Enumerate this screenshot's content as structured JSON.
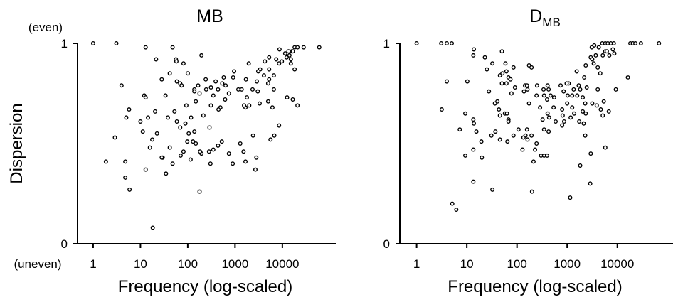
{
  "y_axis_label": "Dispersion",
  "y_top_note": "(even)",
  "y_bottom_note": "(uneven)",
  "chart_data": [
    {
      "type": "scatter",
      "title": "MB",
      "title_sub": "",
      "xlabel": "Frequency (log-scaled)",
      "ylabel": "Dispersion",
      "x_scale": "log10",
      "x_ticks": [
        {
          "v": 0,
          "label": "1"
        },
        {
          "v": 1,
          "label": "10"
        },
        {
          "v": 2,
          "label": "100"
        },
        {
          "v": 3,
          "label": "1000"
        },
        {
          "v": 4,
          "label": "10000"
        }
      ],
      "y_ticks": [
        {
          "v": 0,
          "label": "0"
        },
        {
          "v": 1,
          "label": "1"
        }
      ],
      "xlim_log10": [
        -0.42,
        5.13
      ],
      "ylim": [
        0,
        1
      ],
      "point_format": "[log10(frequency), dispersion]",
      "points": [
        [
          0,
          1.0
        ],
        [
          0.49,
          1.0
        ],
        [
          1.11,
          0.98
        ],
        [
          1.68,
          0.98
        ],
        [
          1.33,
          0.92
        ],
        [
          1.75,
          0.92
        ],
        [
          1.76,
          0.91
        ],
        [
          1.91,
          0.9
        ],
        [
          2.29,
          0.94
        ],
        [
          1.62,
          0.85
        ],
        [
          2.0,
          0.85
        ],
        [
          1.45,
          0.82
        ],
        [
          1.77,
          0.81
        ],
        [
          1.84,
          0.8
        ],
        [
          1.87,
          0.79
        ],
        [
          2.22,
          0.79
        ],
        [
          2.14,
          0.77
        ],
        [
          2.14,
          0.76
        ],
        [
          2.25,
          0.75
        ],
        [
          2.49,
          0.78
        ],
        [
          2.38,
          0.82
        ],
        [
          2.39,
          0.77
        ],
        [
          2.17,
          0.71
        ],
        [
          1.08,
          0.74
        ],
        [
          0.6,
          0.79
        ],
        [
          1.11,
          0.73
        ],
        [
          1.53,
          0.74
        ],
        [
          1.72,
          0.66
        ],
        [
          1.31,
          0.66
        ],
        [
          1.58,
          0.63
        ],
        [
          1.16,
          0.63
        ],
        [
          0.7,
          0.63
        ],
        [
          1.0,
          0.61
        ],
        [
          1.77,
          0.61
        ],
        [
          1.95,
          0.6
        ],
        [
          1.84,
          0.58
        ],
        [
          2.07,
          0.63
        ],
        [
          2.33,
          0.64
        ],
        [
          1.97,
          0.69
        ],
        [
          1.05,
          0.56
        ],
        [
          1.35,
          0.55
        ],
        [
          2.02,
          0.55
        ],
        [
          2.46,
          0.58
        ],
        [
          1.25,
          0.52
        ],
        [
          1.62,
          0.48
        ],
        [
          2.45,
          0.46
        ],
        [
          1.2,
          0.48
        ],
        [
          1.47,
          0.43
        ],
        [
          1.91,
          0.46
        ],
        [
          2.64,
          0.49
        ],
        [
          2.11,
          0.51
        ],
        [
          2.72,
          0.51
        ],
        [
          2.14,
          0.56
        ],
        [
          1.99,
          0.51
        ],
        [
          0.46,
          0.53
        ],
        [
          0.76,
          0.67
        ],
        [
          0.27,
          0.41
        ],
        [
          0.68,
          0.41
        ],
        [
          1.11,
          0.37
        ],
        [
          0.68,
          0.33
        ],
        [
          0.77,
          0.27
        ],
        [
          1.26,
          0.08
        ],
        [
          1.68,
          0.4
        ],
        [
          1.54,
          0.35
        ],
        [
          1.45,
          0.43
        ],
        [
          1.85,
          0.44
        ],
        [
          2.06,
          0.42
        ],
        [
          2.29,
          0.45
        ],
        [
          2.26,
          0.46
        ],
        [
          2.17,
          0.5
        ],
        [
          2.54,
          0.47
        ],
        [
          2.48,
          0.4
        ],
        [
          2.25,
          0.26
        ],
        [
          2.87,
          0.45
        ],
        [
          3.45,
          0.43
        ],
        [
          3.22,
          0.41
        ],
        [
          3.18,
          0.46
        ],
        [
          3.11,
          0.5
        ],
        [
          3.43,
          0.37
        ],
        [
          2.95,
          0.4
        ],
        [
          2.49,
          0.69
        ],
        [
          2.69,
          0.68
        ],
        [
          2.79,
          0.72
        ],
        [
          2.76,
          0.83
        ],
        [
          2.73,
          0.8
        ],
        [
          2.87,
          0.75
        ],
        [
          3.14,
          0.77
        ],
        [
          3.23,
          0.82
        ],
        [
          3.29,
          0.9
        ],
        [
          3.53,
          0.87
        ],
        [
          3.46,
          0.81
        ],
        [
          3.37,
          0.77
        ],
        [
          3.25,
          0.73
        ],
        [
          2.8,
          0.79
        ],
        [
          2.59,
          0.81
        ],
        [
          2.64,
          0.77
        ],
        [
          2.54,
          0.74
        ],
        [
          2.65,
          0.67
        ],
        [
          2.98,
          0.86
        ],
        [
          3.22,
          0.68
        ],
        [
          3.48,
          0.76
        ],
        [
          3.49,
          0.86
        ],
        [
          3.63,
          0.91
        ],
        [
          3.61,
          0.84
        ],
        [
          3.72,
          0.87
        ],
        [
          3.7,
          0.8
        ],
        [
          3.52,
          0.7
        ],
        [
          3.7,
          0.71
        ],
        [
          3.79,
          0.68
        ],
        [
          3.72,
          0.82
        ],
        [
          3.82,
          0.84
        ],
        [
          3.93,
          0.9
        ],
        [
          3.72,
          0.93
        ],
        [
          3.87,
          0.92
        ],
        [
          3.99,
          0.91
        ],
        [
          4.06,
          0.95
        ],
        [
          4.13,
          0.96
        ],
        [
          4.09,
          0.93
        ],
        [
          4.2,
          0.96
        ],
        [
          3.94,
          0.97
        ],
        [
          4.15,
          0.94
        ],
        [
          4.18,
          0.92
        ],
        [
          4.22,
          0.96
        ],
        [
          4.26,
          0.87
        ],
        [
          4.32,
          0.69
        ],
        [
          4.26,
          0.98
        ],
        [
          4.32,
          0.98
        ],
        [
          4.45,
          0.98
        ],
        [
          4.78,
          0.98
        ],
        [
          4.1,
          0.73
        ],
        [
          4.22,
          0.72
        ],
        [
          3.75,
          0.52
        ],
        [
          3.38,
          0.54
        ],
        [
          3.3,
          0.69
        ],
        [
          4.18,
          0.9
        ],
        [
          3.82,
          0.77
        ],
        [
          3.93,
          0.59
        ],
        [
          3.19,
          0.69
        ],
        [
          3.83,
          0.54
        ],
        [
          2.96,
          0.83
        ],
        [
          3.07,
          0.77
        ]
      ]
    },
    {
      "type": "scatter",
      "title": "D",
      "title_sub": "MB",
      "xlabel": "Frequency (log-scaled)",
      "ylabel": "Dispersion",
      "x_scale": "log10",
      "x_ticks": [
        {
          "v": 0,
          "label": "1"
        },
        {
          "v": 1,
          "label": "10"
        },
        {
          "v": 2,
          "label": "100"
        },
        {
          "v": 3,
          "label": "1000"
        },
        {
          "v": 4,
          "label": "10000"
        }
      ],
      "y_ticks": [
        {
          "v": 0,
          "label": "0"
        },
        {
          "v": 1,
          "label": "1"
        }
      ],
      "xlim_log10": [
        -0.42,
        5.11
      ],
      "ylim": [
        0,
        1
      ],
      "point_format": "[log10(frequency), dispersion]",
      "points": [
        [
          0,
          1
        ],
        [
          0.49,
          1
        ],
        [
          0.6,
          1
        ],
        [
          0.7,
          1
        ],
        [
          1.14,
          0.97
        ],
        [
          1.36,
          0.93
        ],
        [
          1.13,
          0.94
        ],
        [
          1.7,
          0.96
        ],
        [
          1.51,
          0.9
        ],
        [
          1.4,
          0.87
        ],
        [
          1.77,
          0.9
        ],
        [
          1.93,
          0.88
        ],
        [
          1.66,
          0.84
        ],
        [
          1.71,
          0.85
        ],
        [
          1.79,
          0.86
        ],
        [
          1.83,
          0.83
        ],
        [
          1.87,
          0.82
        ],
        [
          2.24,
          0.89
        ],
        [
          2.29,
          0.88
        ],
        [
          1.01,
          0.81
        ],
        [
          0.6,
          0.81
        ],
        [
          2.16,
          0.79
        ],
        [
          1.7,
          0.8
        ],
        [
          1.79,
          0.8
        ],
        [
          1.44,
          0.76
        ],
        [
          1.89,
          0.75
        ],
        [
          1.96,
          0.78
        ],
        [
          2.2,
          0.79
        ],
        [
          2.21,
          0.77
        ],
        [
          2.4,
          0.79
        ],
        [
          2.39,
          0.74
        ],
        [
          2.14,
          0.76
        ],
        [
          2.53,
          0.77
        ],
        [
          2.54,
          0.74
        ],
        [
          2.61,
          0.79
        ],
        [
          2.63,
          0.77
        ],
        [
          2.6,
          0.72
        ],
        [
          2.61,
          0.65
        ],
        [
          2.94,
          0.61
        ],
        [
          2.91,
          0.64
        ],
        [
          0.5,
          0.67
        ],
        [
          1.56,
          0.7
        ],
        [
          1.61,
          0.71
        ],
        [
          1.64,
          0.67
        ],
        [
          1.76,
          0.65
        ],
        [
          1.66,
          0.64
        ],
        [
          1.8,
          0.65
        ],
        [
          0.97,
          0.65
        ],
        [
          1.13,
          0.62
        ],
        [
          1.14,
          0.6
        ],
        [
          1.83,
          0.62
        ],
        [
          1.83,
          0.61
        ],
        [
          0.86,
          0.57
        ],
        [
          1.19,
          0.56
        ],
        [
          1.49,
          0.54
        ],
        [
          1.57,
          0.56
        ],
        [
          2.03,
          0.57
        ],
        [
          1.66,
          0.52
        ],
        [
          1.93,
          0.54
        ],
        [
          2.17,
          0.54
        ],
        [
          2.13,
          0.53
        ],
        [
          1.29,
          0.51
        ],
        [
          1.81,
          0.51
        ],
        [
          2.29,
          0.54
        ],
        [
          2.21,
          0.52
        ],
        [
          2.39,
          0.5
        ],
        [
          2.11,
          0.47
        ],
        [
          2.36,
          0.47
        ],
        [
          2.2,
          0.57
        ],
        [
          2.54,
          0.57
        ],
        [
          2.63,
          0.56
        ],
        [
          3.34,
          0.83
        ],
        [
          4.21,
          0.83
        ],
        [
          3.97,
          0.77
        ],
        [
          3.61,
          0.77
        ],
        [
          3.13,
          0.77
        ],
        [
          3.31,
          0.73
        ],
        [
          3.73,
          0.71
        ],
        [
          3.71,
          0.64
        ],
        [
          3.83,
          0.66
        ],
        [
          3.67,
          0.67
        ],
        [
          3.19,
          0.86
        ],
        [
          3.53,
          0.9
        ],
        [
          3.57,
          0.94
        ],
        [
          3.47,
          0.93
        ],
        [
          3.37,
          0.89
        ],
        [
          3.66,
          0.85
        ],
        [
          3.61,
          0.88
        ],
        [
          3.5,
          0.92
        ],
        [
          3.71,
          0.94
        ],
        [
          3.84,
          0.94
        ],
        [
          3.76,
          0.96
        ],
        [
          3.91,
          0.97
        ],
        [
          3.7,
          1
        ],
        [
          3.76,
          1
        ],
        [
          3.81,
          1
        ],
        [
          3.87,
          1
        ],
        [
          3.93,
          1
        ],
        [
          4.26,
          1
        ],
        [
          4.31,
          1
        ],
        [
          4.36,
          1
        ],
        [
          4.47,
          1
        ],
        [
          4.83,
          1
        ],
        [
          3.54,
          0.99
        ],
        [
          3.49,
          0.98
        ],
        [
          3.63,
          0.98
        ],
        [
          3.79,
          0.96
        ],
        [
          3.94,
          0.95
        ],
        [
          3.36,
          0.7
        ],
        [
          3.37,
          0.65
        ],
        [
          3.07,
          0.63
        ],
        [
          3.0,
          0.7
        ],
        [
          3.1,
          0.68
        ],
        [
          2.9,
          0.67
        ],
        [
          3.14,
          0.65
        ],
        [
          3.24,
          0.61
        ],
        [
          2.9,
          0.59
        ],
        [
          3.31,
          0.66
        ],
        [
          2.77,
          0.61
        ],
        [
          3.33,
          0.6
        ],
        [
          3.1,
          0.74
        ],
        [
          3.36,
          0.54
        ],
        [
          3.5,
          0.7
        ],
        [
          3.59,
          0.69
        ],
        [
          3.26,
          0.77
        ],
        [
          3.03,
          0.8
        ],
        [
          3.23,
          0.79
        ],
        [
          3.39,
          0.78
        ],
        [
          2.87,
          0.79
        ],
        [
          2.99,
          0.8
        ],
        [
          2.93,
          0.76
        ],
        [
          3.01,
          0.74
        ],
        [
          3.2,
          0.74
        ],
        [
          2.67,
          0.74
        ],
        [
          2.74,
          0.73
        ],
        [
          2.73,
          0.68
        ],
        [
          2.46,
          0.68
        ],
        [
          2.24,
          0.7
        ],
        [
          2.64,
          0.63
        ],
        [
          2.51,
          0.62
        ],
        [
          0.97,
          0.44
        ],
        [
          1.13,
          0.47
        ],
        [
          1.3,
          0.43
        ],
        [
          1.13,
          0.31
        ],
        [
          2.33,
          0.41
        ],
        [
          2.3,
          0.26
        ],
        [
          1.51,
          0.27
        ],
        [
          2.48,
          0.44
        ],
        [
          2.54,
          0.44
        ],
        [
          2.6,
          0.44
        ],
        [
          3.06,
          0.23
        ],
        [
          3.26,
          0.39
        ],
        [
          3.47,
          0.45
        ],
        [
          3.46,
          0.3
        ],
        [
          3.76,
          0.48
        ],
        [
          0.71,
          0.2
        ],
        [
          0.79,
          0.17
        ]
      ]
    }
  ]
}
